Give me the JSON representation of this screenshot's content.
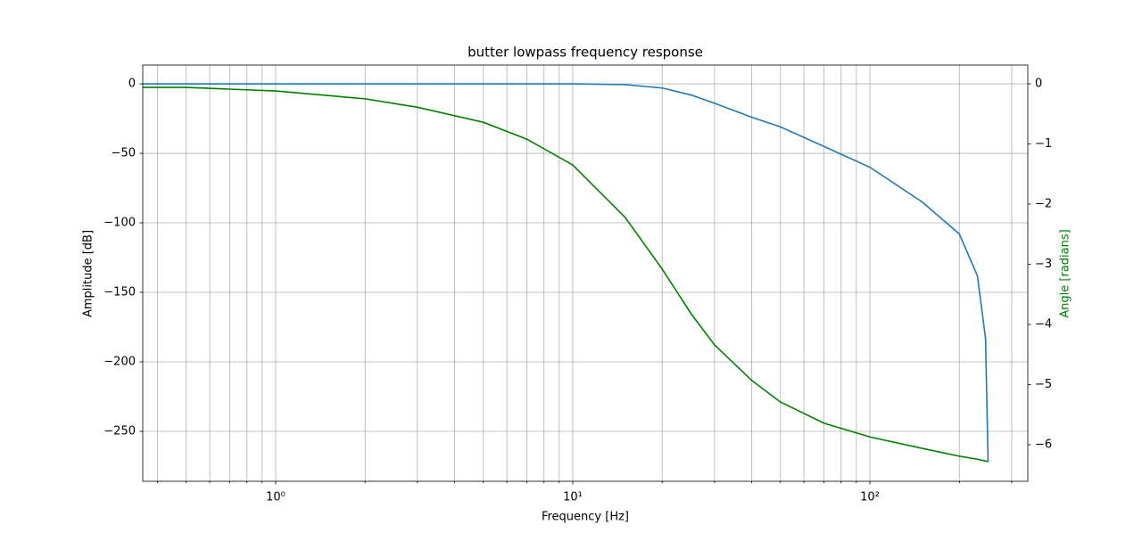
{
  "chart_data": {
    "type": "line",
    "title": "butter lowpass frequency response",
    "xlabel": "Frequency [Hz]",
    "ylabel": "Amplitude [dB]",
    "y2label": "Angle [radians]",
    "xscale": "log",
    "grid": true,
    "x": [
      0.357,
      0.5,
      1,
      2,
      3,
      5,
      7,
      10,
      15,
      20,
      25,
      30,
      40,
      50,
      70,
      100,
      150,
      200,
      230,
      245,
      250
    ],
    "series": [
      {
        "name": "Amplitude",
        "color": "#1f77b4",
        "axis": "y",
        "values": [
          0,
          0,
          0,
          0,
          0,
          0,
          0,
          0,
          -0.6,
          -3,
          -8,
          -14,
          -24,
          -31,
          -45,
          -60,
          -85,
          -108,
          -138,
          -183,
          -272
        ]
      },
      {
        "name": "Angle",
        "color": "#008000",
        "axis": "y2",
        "values": [
          -0.06,
          -0.06,
          -0.12,
          -0.25,
          -0.39,
          -0.64,
          -0.92,
          -1.35,
          -2.22,
          -3.08,
          -3.82,
          -4.34,
          -4.93,
          -5.29,
          -5.64,
          -5.87,
          -6.06,
          -6.19,
          -6.24,
          -6.27,
          -6.28
        ]
      }
    ],
    "xlim": [
      0.357,
      340
    ],
    "xticks": [
      {
        "value": 1,
        "label": "10⁰"
      },
      {
        "value": 10,
        "label": "10¹"
      },
      {
        "value": 100,
        "label": "10²"
      }
    ],
    "xminorticks": [
      0.4,
      0.5,
      0.6,
      0.7,
      0.8,
      0.9,
      2,
      3,
      4,
      5,
      6,
      7,
      8,
      9,
      20,
      30,
      40,
      50,
      60,
      70,
      80,
      90,
      200,
      300
    ],
    "ylim": [
      -285.9,
      13.5
    ],
    "yticks": [
      0,
      {
        "value": -50,
        "label": "−50"
      },
      {
        "value": -100,
        "label": "−100"
      },
      {
        "value": -150,
        "label": "−150"
      },
      {
        "value": -200,
        "label": "−200"
      },
      {
        "value": -250,
        "label": "−250"
      }
    ],
    "y2lim": [
      -6.607,
      0.311
    ],
    "y2ticks": [
      0,
      {
        "value": -1,
        "label": "−1"
      },
      {
        "value": -2,
        "label": "−2"
      },
      {
        "value": -3,
        "label": "−3"
      },
      {
        "value": -4,
        "label": "−4"
      },
      {
        "value": -5,
        "label": "−5"
      },
      {
        "value": -6,
        "label": "−6"
      }
    ]
  }
}
